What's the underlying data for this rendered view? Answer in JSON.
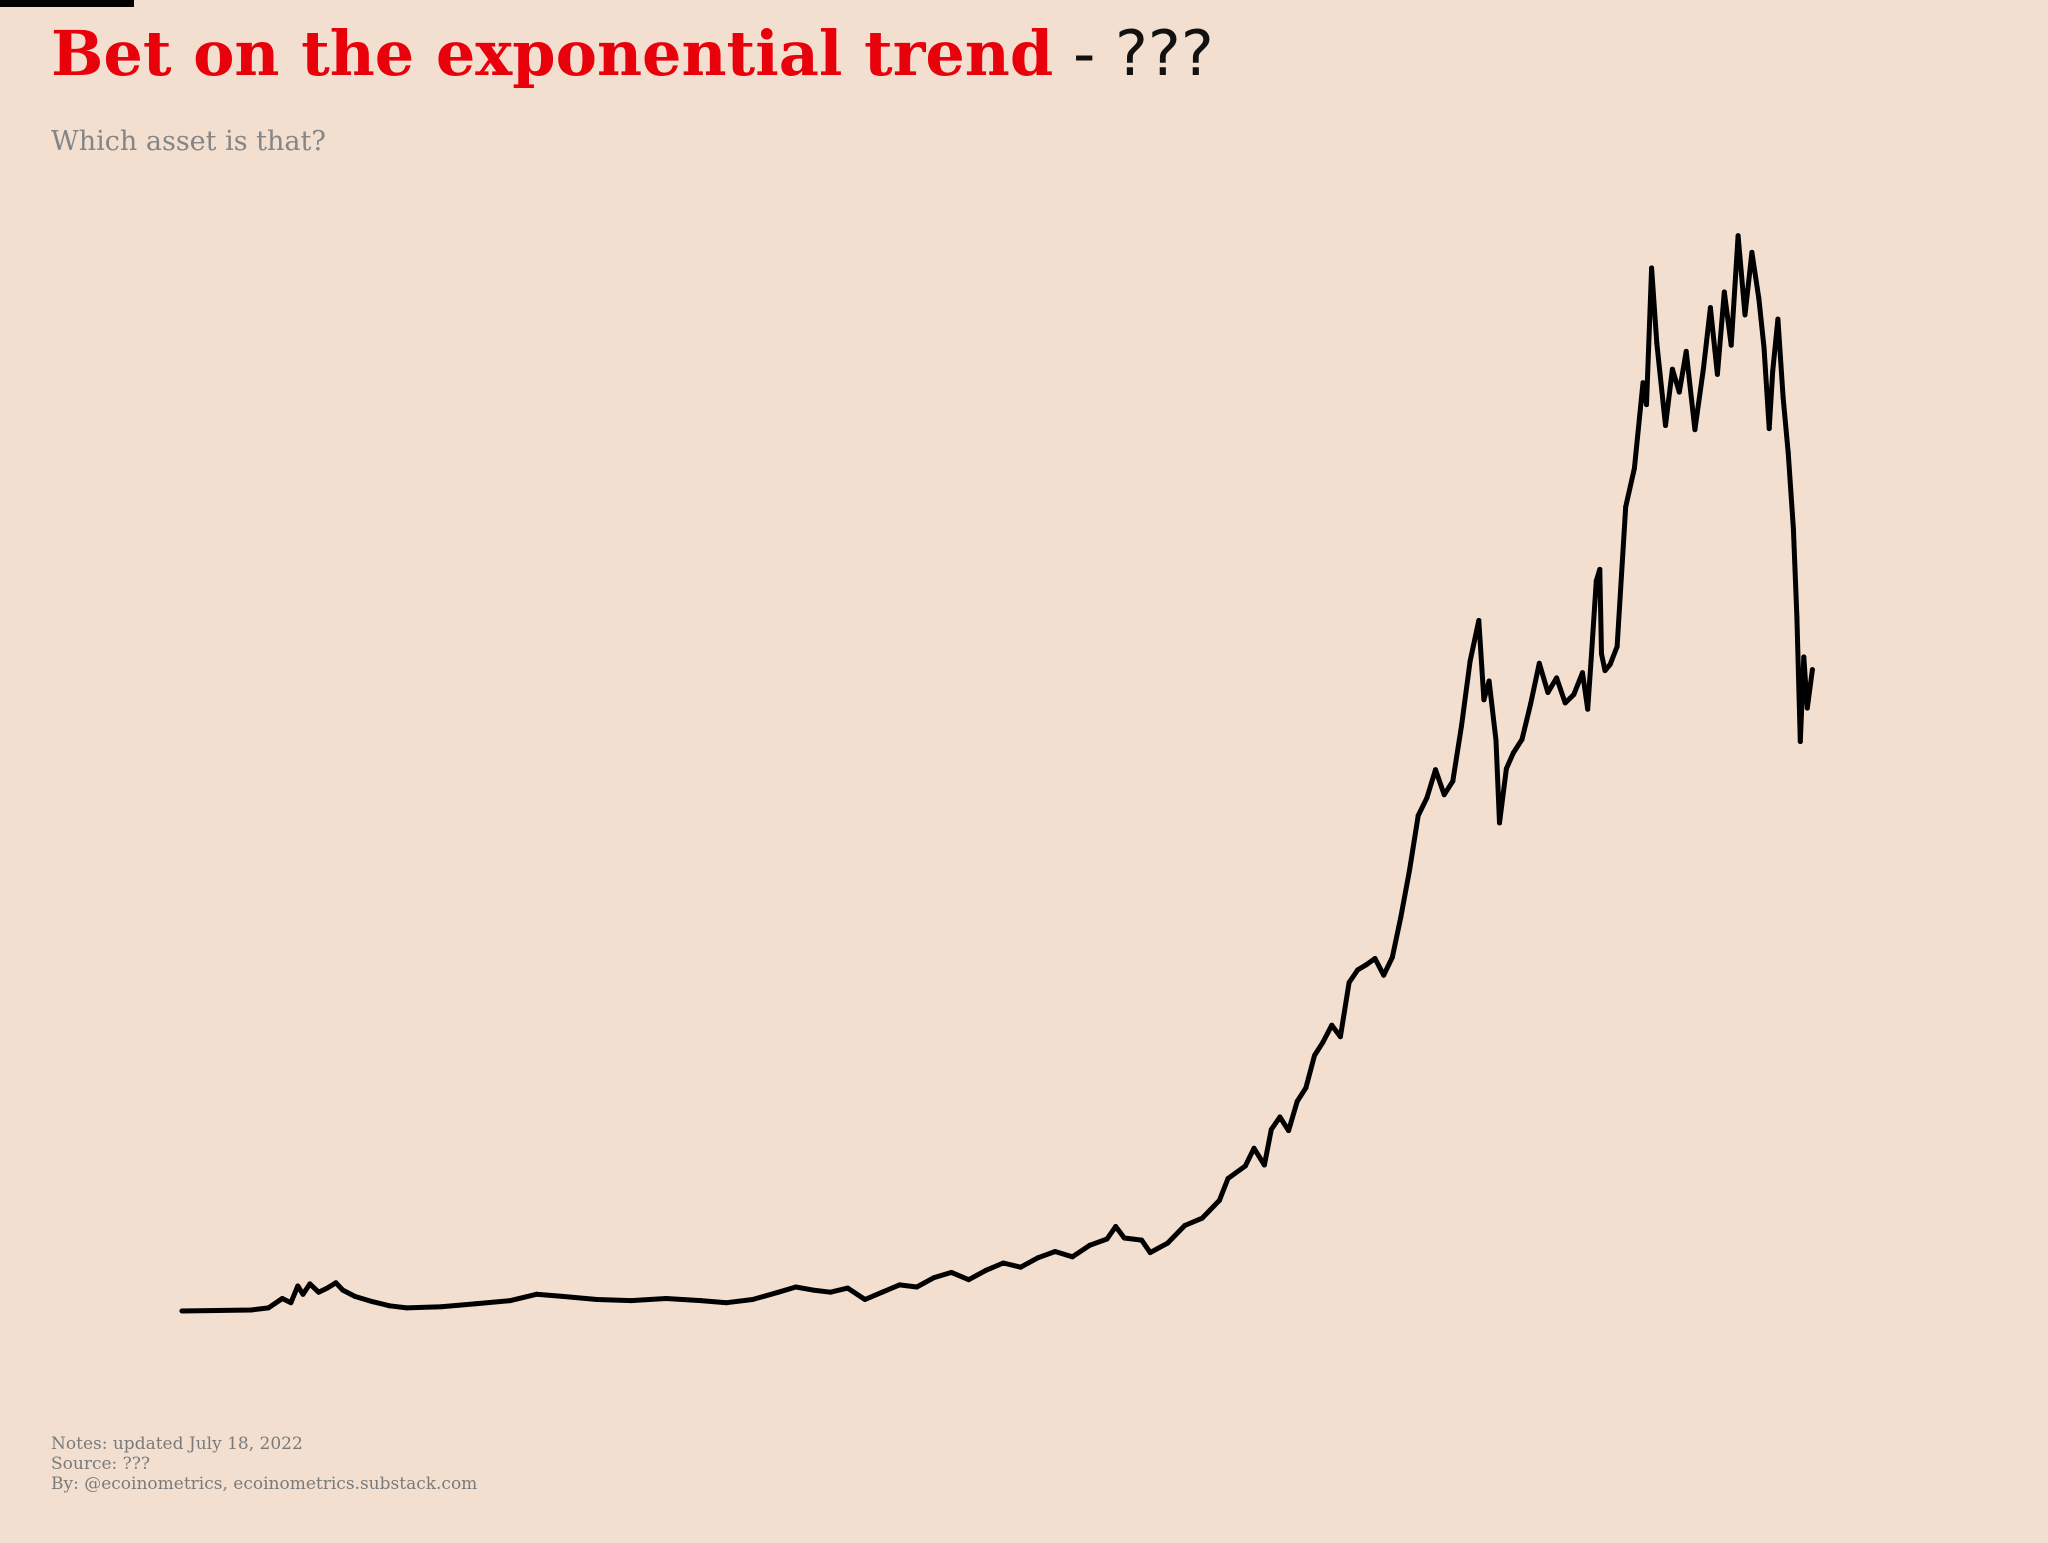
{
  "header": {
    "title_main": "Bet on the exponential trend",
    "title_suffix": " - ???",
    "subtitle": "Which asset is that?"
  },
  "footer": {
    "notes": "Notes: updated July 18, 2022",
    "source": "Source: ???",
    "by": "By: @ecoinometrics, ecoinometrics.substack.com"
  },
  "colors": {
    "background": "#f2dfcf",
    "title_accent": "#e8000b",
    "line": "#000000"
  },
  "chart_data": {
    "type": "line",
    "title": "Bet on the exponential trend - ???",
    "subtitle": "Which asset is that?",
    "xlabel": "",
    "ylabel": "",
    "axes_visible": false,
    "grid": false,
    "legend": "none",
    "x_range": [
      0,
      100
    ],
    "y_range": [
      0,
      100
    ],
    "series": [
      {
        "values": [
          [
            0.0,
            0.0
          ],
          [
            4.0,
            0.1
          ],
          [
            5.0,
            0.3
          ],
          [
            5.8,
            1.2
          ],
          [
            6.3,
            0.8
          ],
          [
            6.7,
            2.4
          ],
          [
            7.0,
            1.6
          ],
          [
            7.4,
            2.6
          ],
          [
            7.9,
            1.8
          ],
          [
            8.4,
            2.2
          ],
          [
            8.9,
            2.7
          ],
          [
            9.3,
            2.0
          ],
          [
            10.0,
            1.4
          ],
          [
            11.0,
            0.9
          ],
          [
            12.0,
            0.5
          ],
          [
            13.0,
            0.3
          ],
          [
            15.0,
            0.4
          ],
          [
            17.0,
            0.7
          ],
          [
            19.0,
            1.0
          ],
          [
            20.5,
            1.6
          ],
          [
            22.0,
            1.4
          ],
          [
            24.0,
            1.1
          ],
          [
            26.0,
            1.0
          ],
          [
            28.0,
            1.2
          ],
          [
            30.0,
            1.0
          ],
          [
            31.5,
            0.8
          ],
          [
            33.0,
            1.1
          ],
          [
            34.5,
            1.8
          ],
          [
            35.5,
            2.3
          ],
          [
            36.5,
            2.0
          ],
          [
            37.5,
            1.8
          ],
          [
            38.5,
            2.2
          ],
          [
            39.5,
            1.1
          ],
          [
            40.5,
            1.8
          ],
          [
            41.5,
            2.5
          ],
          [
            42.5,
            2.3
          ],
          [
            43.5,
            3.2
          ],
          [
            44.5,
            3.7
          ],
          [
            45.5,
            3.0
          ],
          [
            46.5,
            3.9
          ],
          [
            47.5,
            4.6
          ],
          [
            48.5,
            4.2
          ],
          [
            49.5,
            5.1
          ],
          [
            50.5,
            5.7
          ],
          [
            51.5,
            5.2
          ],
          [
            52.5,
            6.3
          ],
          [
            53.5,
            6.9
          ],
          [
            54.0,
            8.1
          ],
          [
            54.5,
            7.0
          ],
          [
            55.5,
            6.8
          ],
          [
            56.0,
            5.6
          ],
          [
            57.0,
            6.5
          ],
          [
            58.0,
            8.2
          ],
          [
            59.0,
            8.9
          ],
          [
            60.0,
            10.6
          ],
          [
            60.5,
            12.7
          ],
          [
            61.5,
            13.9
          ],
          [
            62.0,
            15.6
          ],
          [
            62.6,
            14.0
          ],
          [
            63.0,
            17.4
          ],
          [
            63.5,
            18.6
          ],
          [
            64.0,
            17.3
          ],
          [
            64.5,
            20.1
          ],
          [
            65.0,
            21.4
          ],
          [
            65.5,
            24.5
          ],
          [
            66.0,
            25.8
          ],
          [
            66.5,
            27.4
          ],
          [
            67.0,
            26.3
          ],
          [
            67.5,
            31.5
          ],
          [
            68.0,
            32.7
          ],
          [
            68.5,
            33.2
          ],
          [
            69.0,
            33.8
          ],
          [
            69.5,
            32.2
          ],
          [
            70.0,
            33.9
          ],
          [
            70.5,
            37.8
          ],
          [
            71.0,
            42.3
          ],
          [
            71.5,
            47.5
          ],
          [
            72.0,
            49.2
          ],
          [
            72.5,
            51.9
          ],
          [
            73.0,
            49.5
          ],
          [
            73.5,
            50.8
          ],
          [
            74.0,
            56.1
          ],
          [
            74.5,
            62.3
          ],
          [
            75.0,
            66.2
          ],
          [
            75.3,
            58.6
          ],
          [
            75.6,
            60.4
          ],
          [
            76.0,
            54.7
          ],
          [
            76.2,
            46.8
          ],
          [
            76.6,
            52.0
          ],
          [
            77.0,
            53.5
          ],
          [
            77.5,
            54.8
          ],
          [
            78.0,
            58.2
          ],
          [
            78.5,
            62.1
          ],
          [
            79.0,
            59.3
          ],
          [
            79.5,
            60.7
          ],
          [
            80.0,
            58.3
          ],
          [
            80.5,
            59.1
          ],
          [
            81.0,
            61.2
          ],
          [
            81.3,
            57.7
          ],
          [
            81.5,
            62.4
          ],
          [
            81.8,
            70.0
          ],
          [
            82.0,
            71.1
          ],
          [
            82.1,
            63.0
          ],
          [
            82.3,
            61.4
          ],
          [
            82.6,
            62.0
          ],
          [
            83.0,
            63.7
          ],
          [
            83.5,
            77.1
          ],
          [
            84.0,
            80.8
          ],
          [
            84.5,
            89.0
          ],
          [
            84.7,
            86.9
          ],
          [
            85.0,
            100.0
          ],
          [
            85.3,
            92.8
          ],
          [
            85.8,
            84.9
          ],
          [
            86.2,
            90.3
          ],
          [
            86.6,
            88.1
          ],
          [
            87.0,
            92.0
          ],
          [
            87.5,
            84.5
          ],
          [
            88.0,
            90.4
          ],
          [
            88.4,
            96.2
          ],
          [
            88.8,
            89.8
          ],
          [
            89.2,
            97.7
          ],
          [
            89.6,
            92.6
          ],
          [
            90.0,
            103.1
          ],
          [
            90.4,
            95.5
          ],
          [
            90.8,
            101.5
          ],
          [
            91.2,
            97.1
          ],
          [
            91.5,
            92.4
          ],
          [
            91.8,
            84.6
          ],
          [
            92.0,
            90.1
          ],
          [
            92.3,
            95.1
          ],
          [
            92.6,
            87.6
          ],
          [
            92.9,
            82.3
          ],
          [
            93.2,
            75.0
          ],
          [
            93.4,
            66.5
          ],
          [
            93.6,
            54.6
          ],
          [
            93.8,
            62.7
          ],
          [
            94.0,
            57.8
          ],
          [
            94.3,
            61.5
          ]
        ]
      }
    ]
  }
}
